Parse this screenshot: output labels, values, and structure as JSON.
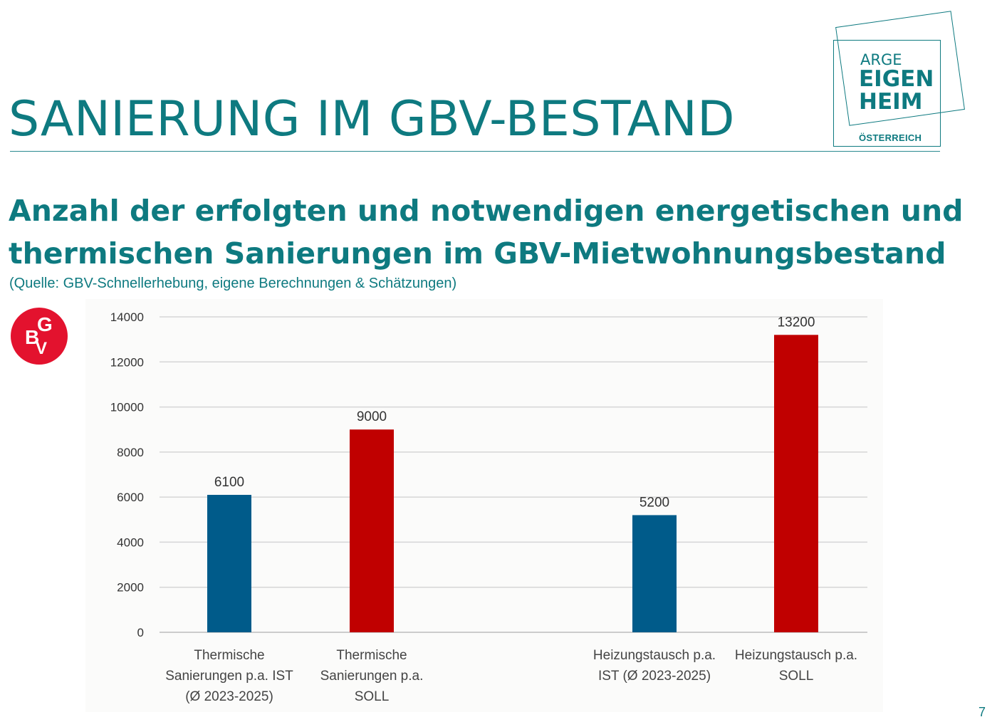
{
  "title": "SANIERUNG IM GBV-BESTAND",
  "logo": {
    "line1": "ARGE",
    "line2": "EIGEN",
    "line3": "HEIM",
    "line4": "ÖSTERREICH",
    "color": "#0e7a80"
  },
  "subtitle_lines": [
    "Anzahl der erfolgten und notwendigen energetischen und",
    "thermischen Sanierungen im GBV-Mietwohnungsbestand"
  ],
  "source": "(Quelle: GBV-Schnellerhebung, eigene Berechnungen & Schätzungen)",
  "gbv_logo": {
    "letters": [
      "G",
      "B",
      "V"
    ],
    "color": "#e3122e"
  },
  "page_number": "7",
  "chart_data": {
    "type": "bar",
    "categories": [
      [
        "Thermische",
        "Sanierungen p.a. IST",
        "(Ø 2023-2025)"
      ],
      [
        "Thermische",
        "Sanierungen p.a.",
        "SOLL"
      ],
      [
        "Heizungstausch p.a.",
        "IST (Ø 2023-2025)"
      ],
      [
        "Heizungstausch p.a.",
        "SOLL"
      ]
    ],
    "values": [
      6100,
      9000,
      5200,
      13200
    ],
    "data_labels": [
      "6100",
      "9000",
      "5200",
      "13200"
    ],
    "bar_colors": [
      "#005b8a",
      "#c00000",
      "#005b8a",
      "#c00000"
    ],
    "ylim": [
      0,
      14000
    ],
    "yticks": [
      0,
      2000,
      4000,
      6000,
      8000,
      10000,
      12000,
      14000
    ],
    "grid": true,
    "title": "",
    "xlabel": "",
    "ylabel": ""
  }
}
